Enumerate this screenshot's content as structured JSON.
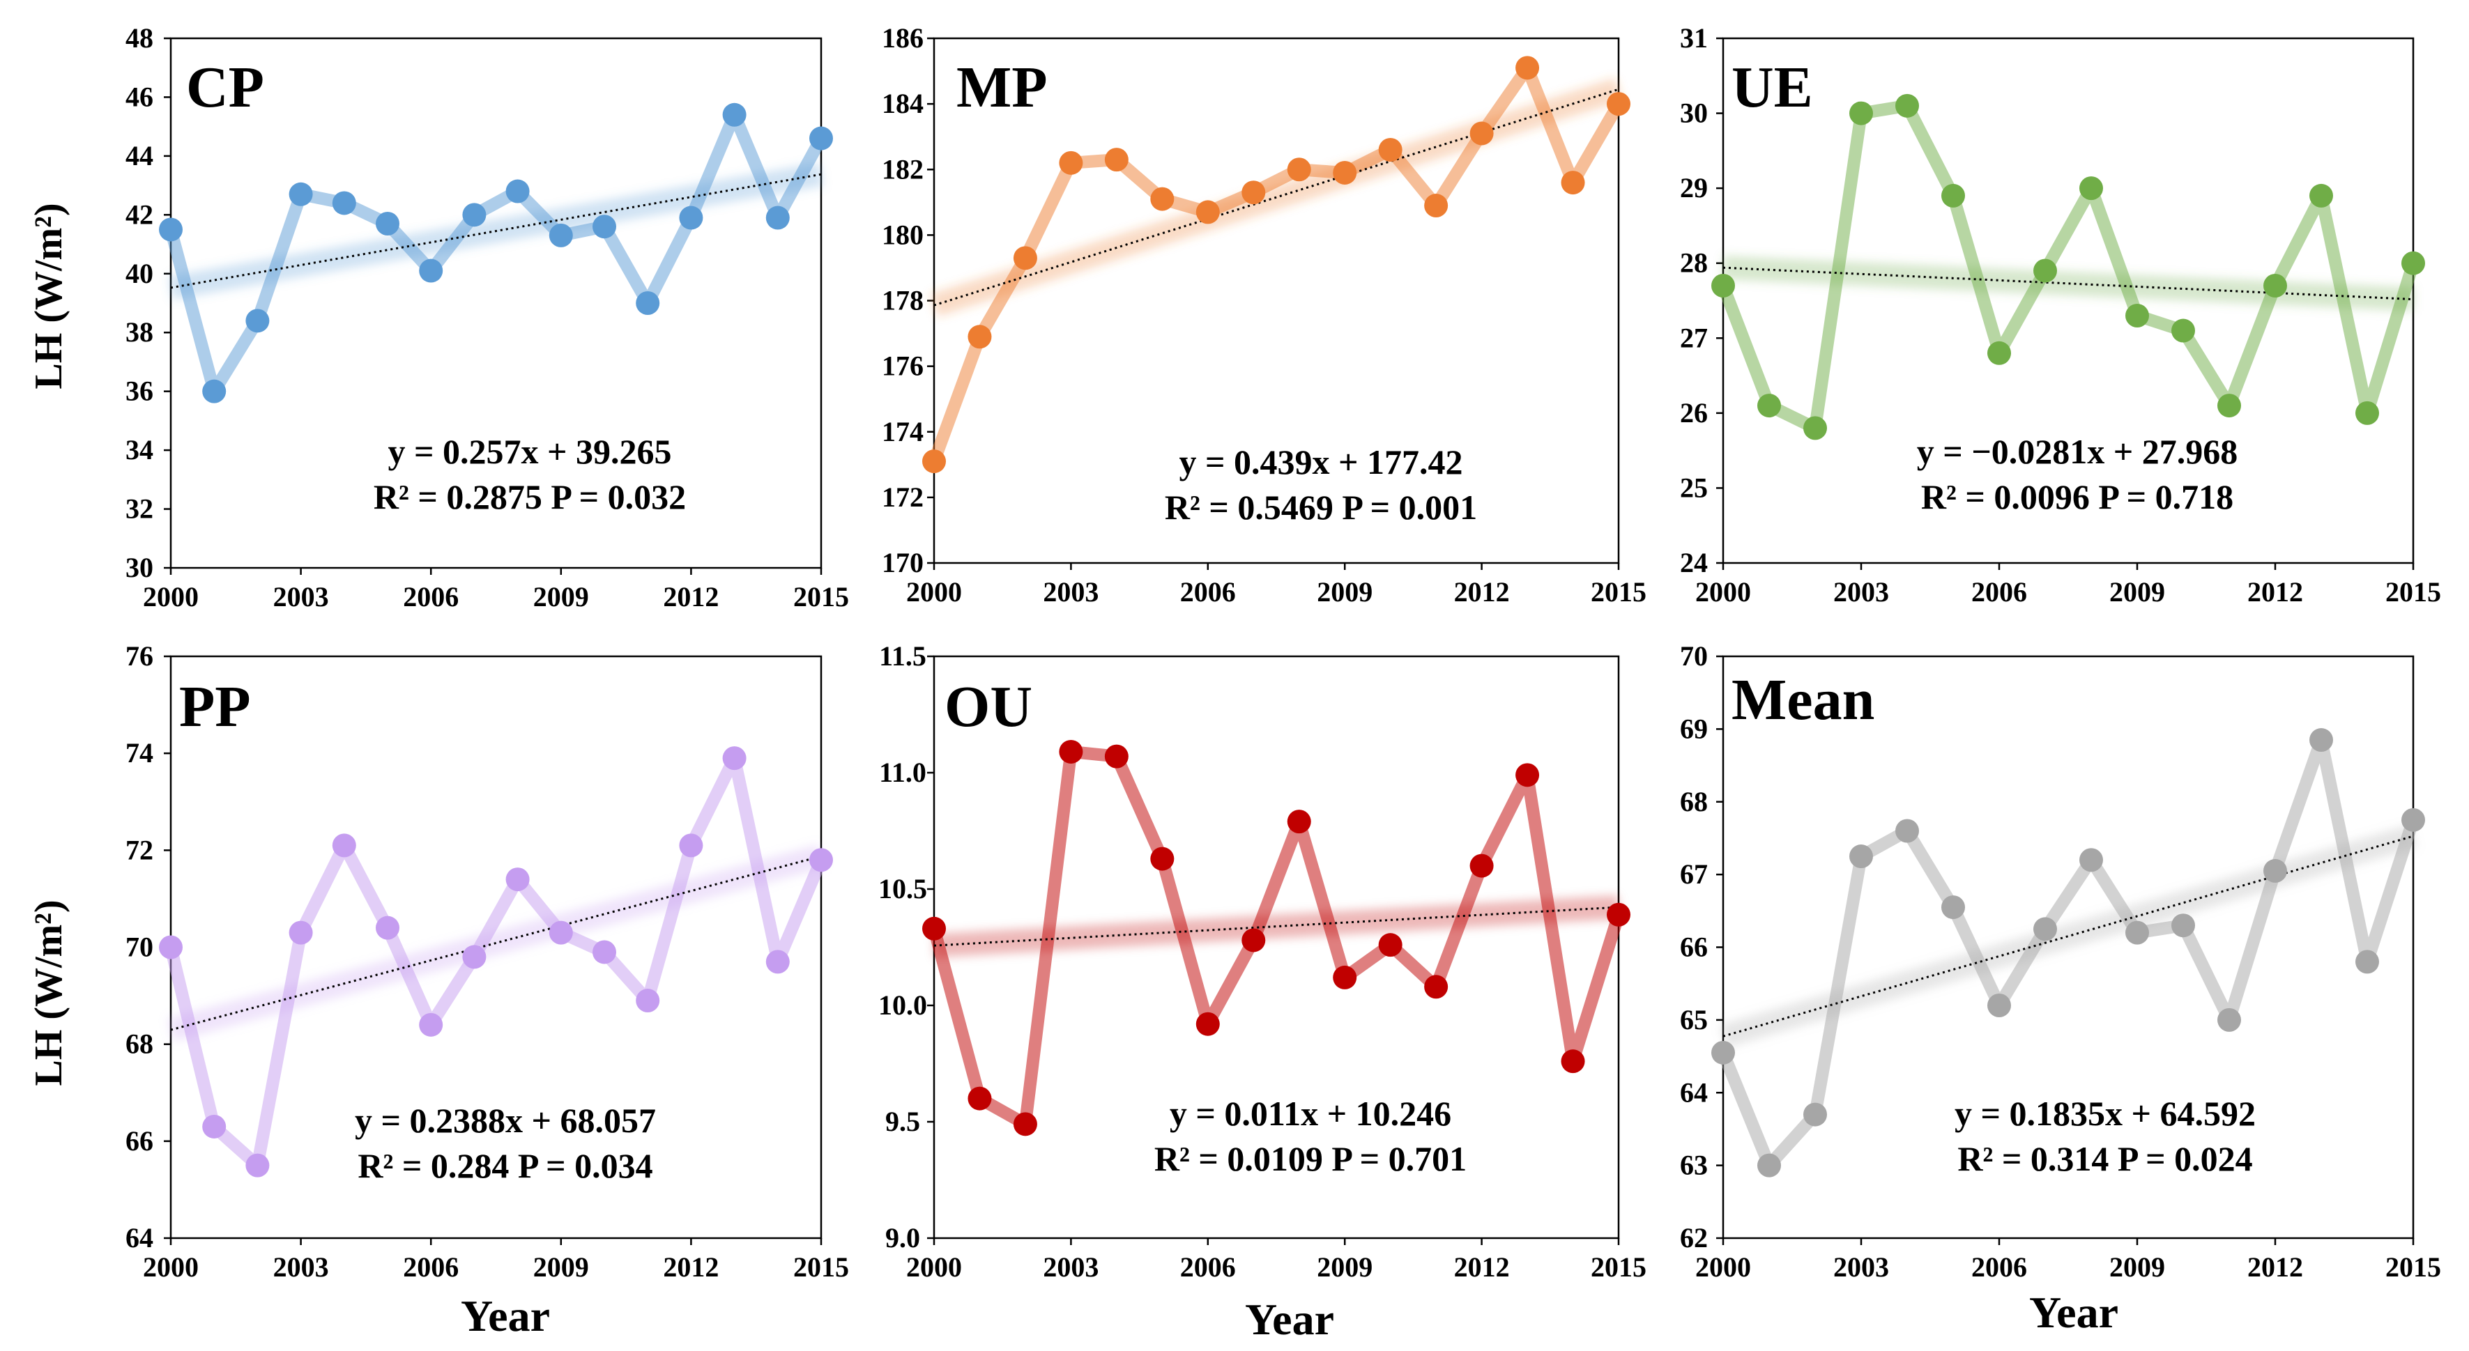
{
  "figure": {
    "ylabel_top": "LH (W/m²)",
    "ylabel_bottom": "LH (W/m²)",
    "xlabel": "Year"
  },
  "chart_data": [
    {
      "type": "line",
      "title": "CP",
      "color": "#5b9bd5",
      "x": [
        2000,
        2001,
        2002,
        2003,
        2004,
        2005,
        2006,
        2007,
        2008,
        2009,
        2010,
        2011,
        2012,
        2013,
        2014,
        2015
      ],
      "y": [
        41.5,
        36.0,
        38.4,
        42.7,
        42.4,
        41.7,
        40.1,
        42.0,
        42.8,
        41.3,
        41.6,
        39.0,
        41.9,
        45.4,
        41.9,
        44.6
      ],
      "xticks": [
        "2000",
        "2003",
        "2006",
        "2009",
        "2012",
        "2015"
      ],
      "yticks": [
        "30",
        "32",
        "34",
        "36",
        "38",
        "40",
        "42",
        "44",
        "46",
        "48"
      ],
      "ylim": [
        30,
        48
      ],
      "trend": {
        "slope": 0.257,
        "intercept": 39.265
      },
      "equation": "y = 0.257x + 39.265",
      "stats": "R² = 0.2875 P = 0.032"
    },
    {
      "type": "line",
      "title": "MP",
      "color": "#ed7d31",
      "x": [
        2000,
        2001,
        2002,
        2003,
        2004,
        2005,
        2006,
        2007,
        2008,
        2009,
        2010,
        2011,
        2012,
        2013,
        2014,
        2015
      ],
      "y": [
        173.1,
        176.9,
        179.3,
        182.2,
        182.3,
        181.1,
        180.7,
        181.3,
        182.0,
        181.9,
        182.6,
        180.9,
        183.1,
        185.1,
        181.6,
        184.0
      ],
      "xticks": [
        "2000",
        "2003",
        "2006",
        "2009",
        "2012",
        "2015"
      ],
      "yticks": [
        "170",
        "172",
        "174",
        "176",
        "178",
        "180",
        "182",
        "184",
        "186"
      ],
      "ylim": [
        170,
        186
      ],
      "trend": {
        "slope": 0.439,
        "intercept": 177.42
      },
      "equation": "y = 0.439x + 177.42",
      "stats": "R² = 0.5469 P = 0.001"
    },
    {
      "type": "line",
      "title": "UE",
      "color": "#70ad47",
      "x": [
        2000,
        2001,
        2002,
        2003,
        2004,
        2005,
        2006,
        2007,
        2008,
        2009,
        2010,
        2011,
        2012,
        2013,
        2014,
        2015
      ],
      "y": [
        27.7,
        26.1,
        25.8,
        30.0,
        30.1,
        28.9,
        26.8,
        27.9,
        29.0,
        27.3,
        27.1,
        26.1,
        27.7,
        28.9,
        26.0,
        28.0
      ],
      "xticks": [
        "2000",
        "2003",
        "2006",
        "2009",
        "2012",
        "2015"
      ],
      "yticks": [
        "24",
        "25",
        "26",
        "27",
        "28",
        "29",
        "30",
        "31"
      ],
      "ylim": [
        24,
        31
      ],
      "trend": {
        "slope": -0.0281,
        "intercept": 27.968
      },
      "equation": "y = −0.0281x + 27.968",
      "stats": "R² = 0.0096 P = 0.718"
    },
    {
      "type": "line",
      "title": "PP",
      "color": "#c59df0",
      "x": [
        2000,
        2001,
        2002,
        2003,
        2004,
        2005,
        2006,
        2007,
        2008,
        2009,
        2010,
        2011,
        2012,
        2013,
        2014,
        2015
      ],
      "y": [
        70.0,
        66.3,
        65.5,
        70.3,
        72.1,
        70.4,
        68.4,
        69.8,
        71.4,
        70.3,
        69.9,
        68.9,
        72.1,
        73.9,
        69.7,
        71.8
      ],
      "xticks": [
        "2000",
        "2003",
        "2006",
        "2009",
        "2012",
        "2015"
      ],
      "yticks": [
        "64",
        "66",
        "68",
        "70",
        "72",
        "74",
        "76"
      ],
      "ylim": [
        64,
        76
      ],
      "trend": {
        "slope": 0.2388,
        "intercept": 68.057
      },
      "equation": "y = 0.2388x + 68.057",
      "stats": "R² = 0.284 P = 0.034"
    },
    {
      "type": "line",
      "title": "OU",
      "color": "#c00000",
      "x": [
        2000,
        2001,
        2002,
        2003,
        2004,
        2005,
        2006,
        2007,
        2008,
        2009,
        2010,
        2011,
        2012,
        2013,
        2014,
        2015
      ],
      "y": [
        10.33,
        9.6,
        9.49,
        11.09,
        11.07,
        10.63,
        9.92,
        10.28,
        10.79,
        10.12,
        10.26,
        10.08,
        10.6,
        10.99,
        9.76,
        10.39
      ],
      "xticks": [
        "2000",
        "2003",
        "2006",
        "2009",
        "2012",
        "2015"
      ],
      "yticks": [
        "9.0",
        "9.5",
        "10.0",
        "10.5",
        "11.0",
        "11.5"
      ],
      "ylim": [
        9.0,
        11.5
      ],
      "trend": {
        "slope": 0.011,
        "intercept": 10.246
      },
      "equation": "y = 0.011x + 10.246",
      "stats": "R² = 0.0109 P = 0.701"
    },
    {
      "type": "line",
      "title": "Mean",
      "color": "#a6a6a6",
      "x": [
        2000,
        2001,
        2002,
        2003,
        2004,
        2005,
        2006,
        2007,
        2008,
        2009,
        2010,
        2011,
        2012,
        2013,
        2014,
        2015
      ],
      "y": [
        64.55,
        63.0,
        63.7,
        67.25,
        67.6,
        66.55,
        65.2,
        66.25,
        67.2,
        66.2,
        66.3,
        65.0,
        67.05,
        68.85,
        65.8,
        67.75
      ],
      "xticks": [
        "2000",
        "2003",
        "2006",
        "2009",
        "2012",
        "2015"
      ],
      "yticks": [
        "62",
        "63",
        "64",
        "65",
        "66",
        "67",
        "68",
        "69",
        "70"
      ],
      "ylim": [
        62,
        70
      ],
      "trend": {
        "slope": 0.1835,
        "intercept": 64.592
      },
      "equation": "y = 0.1835x + 64.592",
      "stats": "R² = 0.314 P = 0.024"
    }
  ]
}
